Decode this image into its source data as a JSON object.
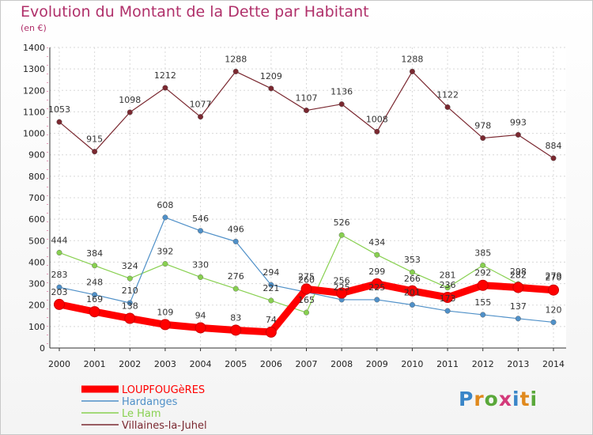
{
  "chart_data": {
    "type": "line",
    "title": "Evolution du Montant de la Dette par Habitant",
    "subtitle": "(en €)",
    "categories": [
      "2000",
      "2001",
      "2002",
      "2003",
      "2004",
      "2005",
      "2006",
      "2007",
      "2008",
      "2009",
      "2010",
      "2011",
      "2012",
      "2013",
      "2014"
    ],
    "ylim": [
      0,
      1400
    ],
    "yticks": [
      0,
      100,
      200,
      300,
      400,
      500,
      600,
      700,
      800,
      900,
      1000,
      1100,
      1200,
      1300,
      1400
    ],
    "grid": true,
    "legend_position": "bottom-left",
    "series": [
      {
        "name": "LOUPFOUGèRES",
        "color": "#ff0000",
        "values": [
          203,
          169,
          138,
          109,
          94,
          83,
          74,
          275,
          256,
          299,
          266,
          236,
          292,
          282,
          270
        ]
      },
      {
        "name": "Hardanges",
        "color": "#4f90c8",
        "values": [
          283,
          248,
          210,
          608,
          546,
          496,
          294,
          260,
          225,
          225,
          201,
          173,
          155,
          137,
          120
        ]
      },
      {
        "name": "Le Ham",
        "color": "#88d050",
        "values": [
          444,
          384,
          324,
          392,
          330,
          276,
          221,
          165,
          526,
          434,
          353,
          281,
          385,
          298,
          279
        ]
      },
      {
        "name": "Villaines-la-Juhel",
        "color": "#7a2830",
        "values": [
          1053,
          915,
          1098,
          1212,
          1077,
          1288,
          1209,
          1107,
          1136,
          1008,
          1288,
          1122,
          978,
          993,
          884
        ]
      }
    ]
  },
  "logo": {
    "text": "Proxiti"
  }
}
